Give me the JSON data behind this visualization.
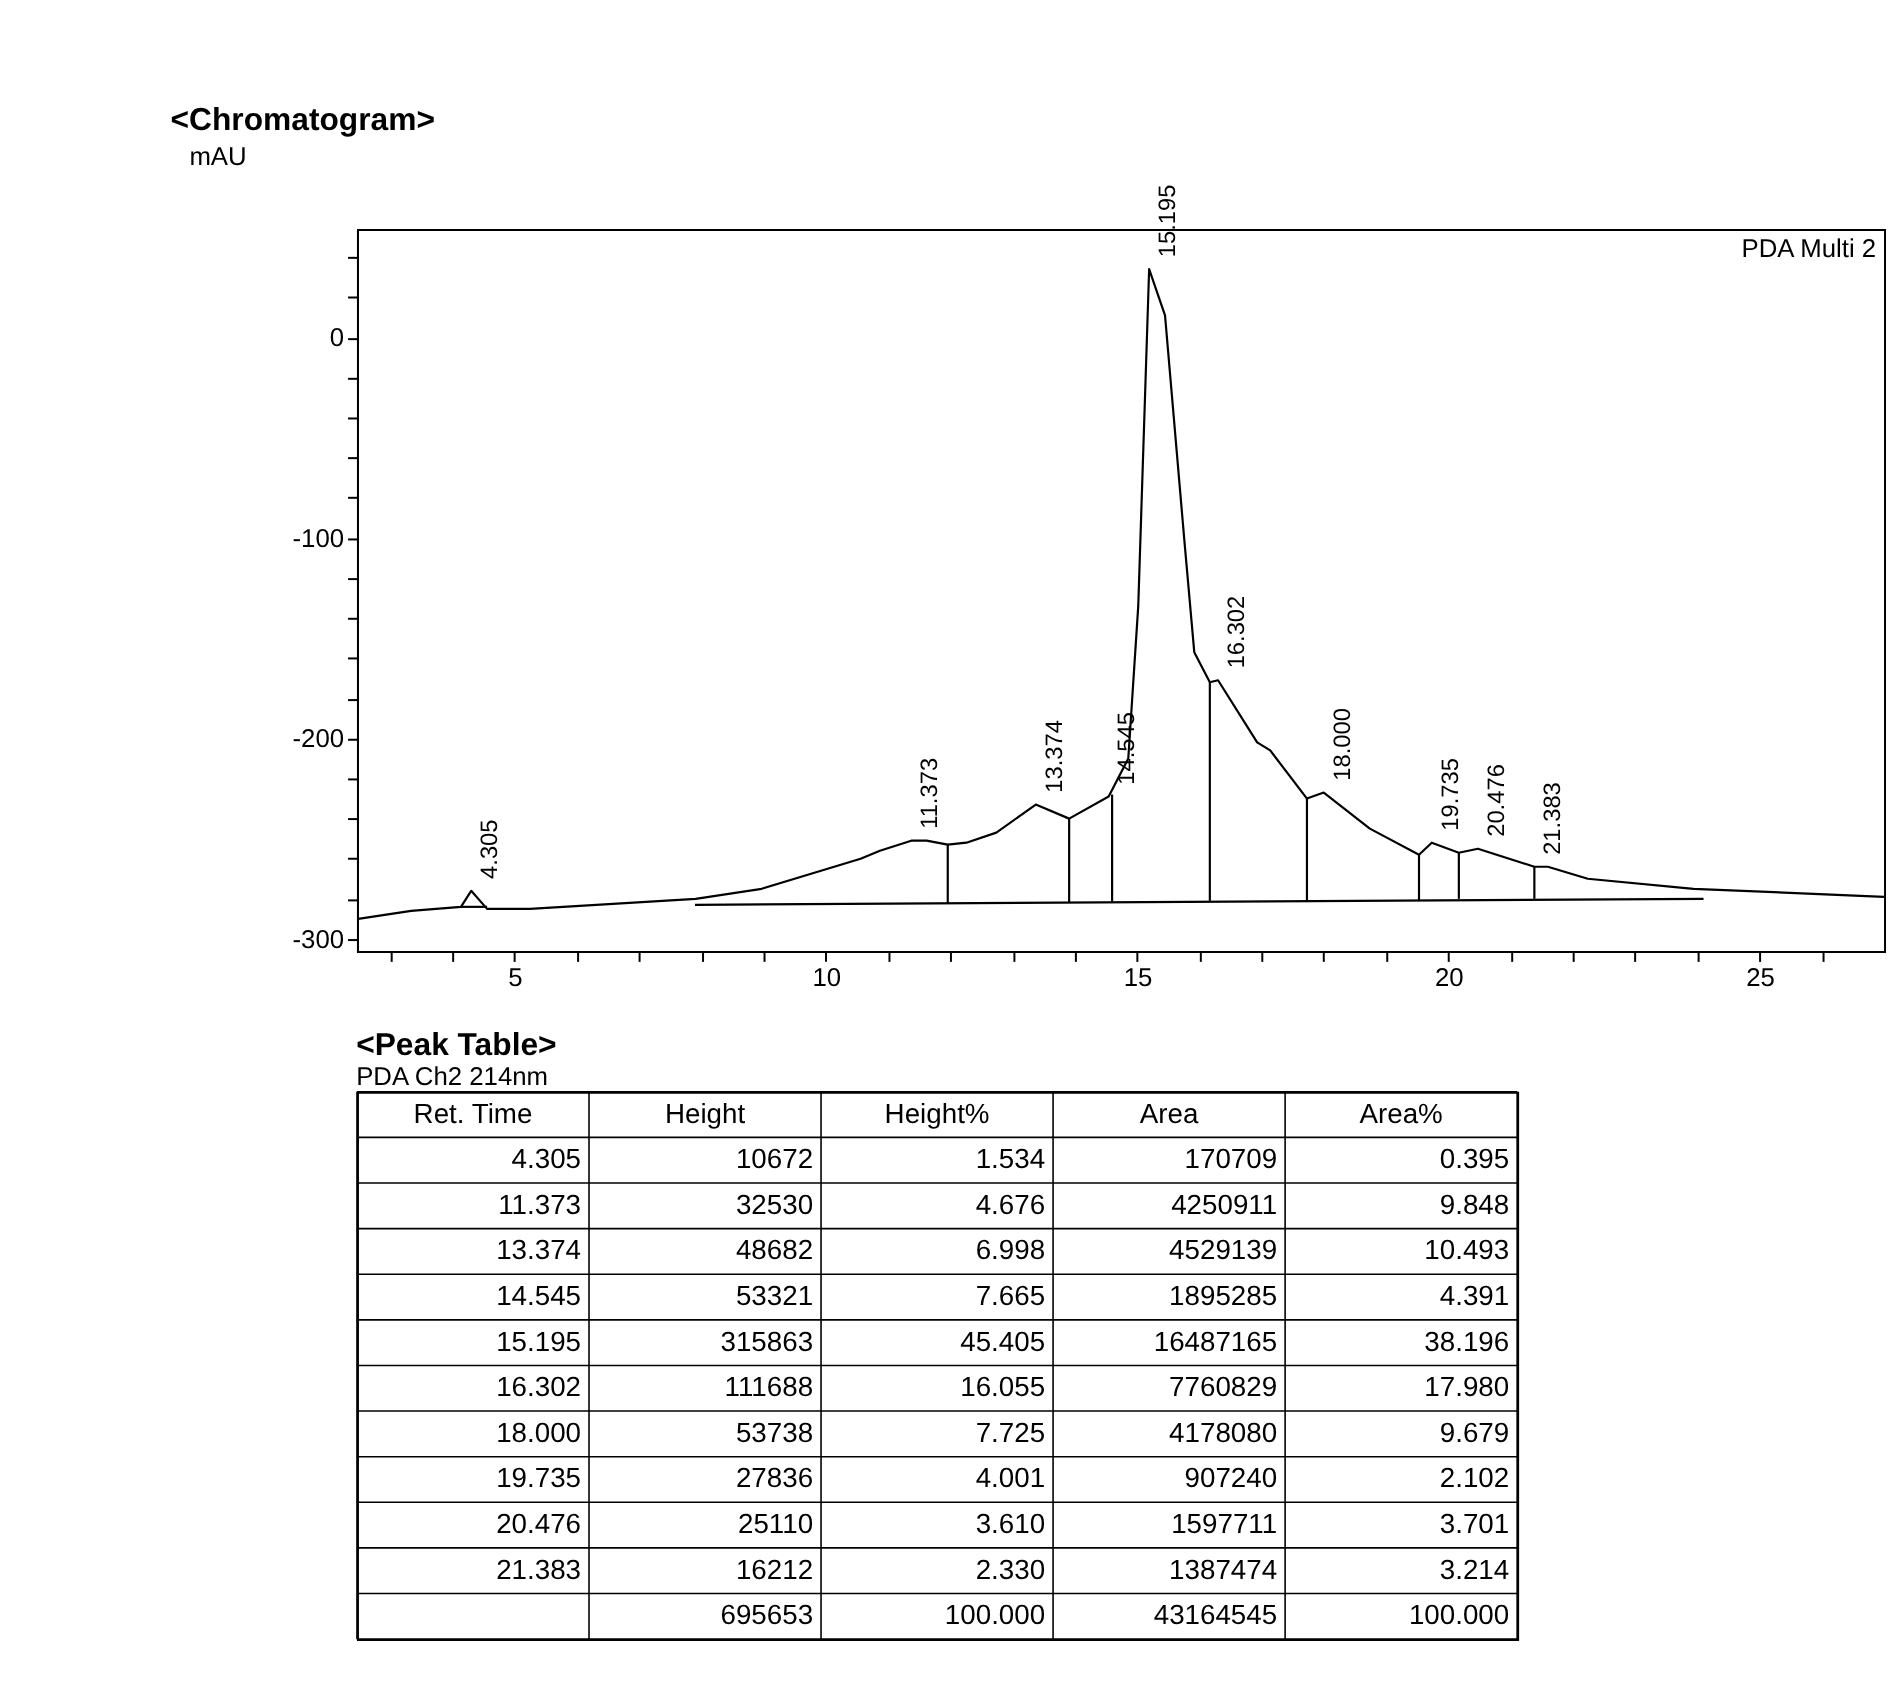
{
  "chart_data": [
    {
      "type": "line",
      "title": "<Chromatogram>",
      "ylabel": "mAU",
      "xlim": [
        2.47,
        27.0
      ],
      "ylim": [
        -306,
        54
      ],
      "xticks": [
        {
          "value": 3,
          "label": null
        },
        {
          "value": 4,
          "label": null
        },
        5,
        {
          "value": 6,
          "label": null
        },
        {
          "value": 7,
          "label": null
        },
        {
          "value": 8,
          "label": null
        },
        {
          "value": 9,
          "label": null
        },
        10,
        {
          "value": 11,
          "label": null
        },
        {
          "value": 12,
          "label": null
        },
        {
          "value": 13,
          "label": null
        },
        {
          "value": 14,
          "label": null
        },
        15,
        {
          "value": 16,
          "label": null
        },
        {
          "value": 17,
          "label": null
        },
        {
          "value": 18,
          "label": null
        },
        {
          "value": 19,
          "label": null
        },
        20,
        {
          "value": 21,
          "label": null
        },
        {
          "value": 22,
          "label": null
        },
        {
          "value": 23,
          "label": null
        },
        {
          "value": 24,
          "label": null
        },
        25,
        {
          "value": 26,
          "label": null
        }
      ],
      "yticks": [
        -300,
        {
          "value": -280,
          "label": null
        },
        {
          "value": -260,
          "label": null
        },
        {
          "value": -240,
          "label": null
        },
        {
          "value": -220,
          "label": null
        },
        -200,
        {
          "value": -180,
          "label": null
        },
        {
          "value": -160,
          "label": null
        },
        {
          "value": -140,
          "label": null
        },
        {
          "value": -120,
          "label": null
        },
        -100,
        {
          "value": -80,
          "label": null
        },
        {
          "value": -60,
          "label": null
        },
        {
          "value": -40,
          "label": null
        },
        {
          "value": -20,
          "label": null
        },
        0,
        {
          "value": 20,
          "label": null
        },
        {
          "value": 40,
          "label": null
        }
      ],
      "grid": false,
      "marker": "none",
      "line_style": "solid",
      "series": [
        {
          "color": "#000000",
          "x": [
            2.49,
            3.34,
            4.14,
            4.305,
            4.56,
            5.25,
            7.91,
            8.97,
            10.03,
            10.56,
            10.87,
            11.373,
            11.62,
            11.96,
            12.26,
            12.74,
            13.374,
            13.91,
            14.545,
            14.86,
            15.02,
            15.195,
            15.45,
            15.76,
            15.92,
            16.17,
            16.302,
            16.93,
            17.14,
            17.73,
            18.0,
            18.74,
            19.53,
            19.735,
            20.17,
            20.476,
            21.383,
            21.6,
            22.24,
            23.94,
            27.0
          ],
          "values": [
            -290,
            -286,
            -284,
            -276,
            -285,
            -285,
            -280,
            -275,
            -265,
            -260,
            -256,
            -251,
            -251,
            -253,
            -252,
            -247,
            -233,
            -240,
            -229,
            -210,
            -134,
            34,
            11,
            -101,
            -157,
            -172,
            -171,
            -202,
            -206,
            -230,
            -227,
            -245,
            -258,
            -252,
            -257,
            -255,
            -264,
            -264,
            -270,
            -275,
            -279
          ]
        },
        {
          "color": "#000000",
          "x": [
            4.14,
            4.56
          ],
          "values": [
            -284,
            -284
          ]
        },
        {
          "color": "#000000",
          "x": [
            7.9,
            24.1
          ],
          "values": [
            -283,
            -280
          ]
        },
        {
          "color": "#000000",
          "x": [
            11.96,
            11.96
          ],
          "values": [
            -282,
            -253
          ]
        },
        {
          "color": "#000000",
          "x": [
            13.91,
            13.91
          ],
          "values": [
            -282,
            -240
          ]
        },
        {
          "color": "#000000",
          "x": [
            14.6,
            14.6
          ],
          "values": [
            -282,
            -228
          ]
        },
        {
          "color": "#000000",
          "x": [
            16.17,
            16.17
          ],
          "values": [
            -281,
            -172
          ]
        },
        {
          "color": "#000000",
          "x": [
            17.73,
            17.73
          ],
          "values": [
            -281,
            -230
          ]
        },
        {
          "color": "#000000",
          "x": [
            19.53,
            19.53
          ],
          "values": [
            -281,
            -258
          ]
        },
        {
          "color": "#000000",
          "x": [
            20.17,
            20.17
          ],
          "values": [
            -280,
            -257
          ]
        },
        {
          "color": "#000000",
          "x": [
            21.383,
            21.383
          ],
          "values": [
            -280,
            -264
          ]
        }
      ],
      "annotations": [
        {
          "text": "4.305",
          "x": 4.305,
          "y": -276
        },
        {
          "text": "11.373",
          "x": 11.373,
          "y": -251
        },
        {
          "text": "13.374",
          "x": 13.374,
          "y": -233
        },
        {
          "text": "14.545",
          "x": 14.545,
          "y": -229
        },
        {
          "text": "15.195",
          "x": 15.195,
          "y": 34
        },
        {
          "text": "16.302",
          "x": 16.302,
          "y": -171
        },
        {
          "text": "18.000",
          "x": 18.0,
          "y": -227
        },
        {
          "text": "19.735",
          "x": 19.735,
          "y": -252
        },
        {
          "text": "20.476",
          "x": 20.476,
          "y": -255
        },
        {
          "text": "21.383",
          "x": 21.383,
          "y": -264
        },
        "PDA Multi 2"
      ]
    },
    {
      "type": "other",
      "title": "<Peak Table>",
      "subtitle": "PDA Ch2 214nm",
      "categories": [
        "Ret. Time",
        "Height",
        "Height%",
        "Area",
        "Area%"
      ],
      "annotations": [
        "4.305",
        "10672",
        "1.534",
        "170709",
        "0.395",
        "11.373",
        "32530",
        "4.676",
        "4250911",
        "9.848",
        "13.374",
        "48682",
        "6.998",
        "4529139",
        "10.493",
        "14.545",
        "53321",
        "7.665",
        "1895285",
        "4.391",
        "15.195",
        "315863",
        "45.405",
        "16487165",
        "38.196",
        "16.302",
        "111688",
        "16.055",
        "7760829",
        "17.980",
        "18.000",
        "53738",
        "7.725",
        "4178080",
        "9.679",
        "19.735",
        "27836",
        "4.001",
        "907240",
        "2.102",
        "20.476",
        "25110",
        "3.610",
        "1597711",
        "3.701",
        "21.383",
        "16212",
        "2.330",
        "1387474",
        "3.214",
        null,
        "695653",
        "100.000",
        "43164545",
        "100.000"
      ]
    }
  ]
}
